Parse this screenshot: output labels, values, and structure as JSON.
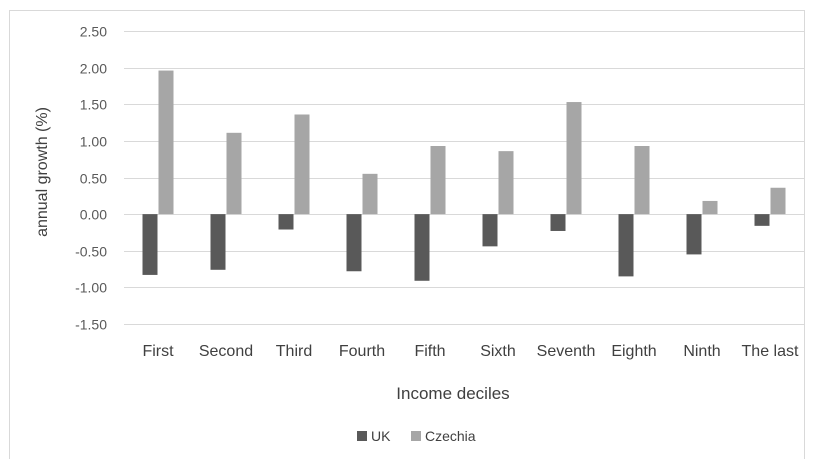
{
  "chart_data": {
    "type": "bar",
    "title": "",
    "xlabel": "Income deciles",
    "ylabel": "annual growth (%)",
    "categories": [
      "First",
      "Second",
      "Third",
      "Fourth",
      "Fifth",
      "Sixth",
      "Seventh",
      "Eighth",
      "Ninth",
      "The last"
    ],
    "series": [
      {
        "name": "UK",
        "color": "#595959",
        "values": [
          -0.83,
          -0.76,
          -0.21,
          -0.78,
          -0.91,
          -0.44,
          -0.23,
          -0.85,
          -0.55,
          -0.16
        ]
      },
      {
        "name": "Czechia",
        "color": "#a6a6a6",
        "values": [
          1.96,
          1.11,
          1.36,
          0.55,
          0.93,
          0.86,
          1.53,
          0.93,
          0.18,
          0.36
        ]
      }
    ],
    "ylim": [
      -1.5,
      2.5
    ],
    "yticks": [
      "-1.50",
      "-1.00",
      "-0.50",
      "0.00",
      "0.50",
      "1.00",
      "1.50",
      "2.00",
      "2.50"
    ],
    "grid": true,
    "legend": "bottom"
  }
}
